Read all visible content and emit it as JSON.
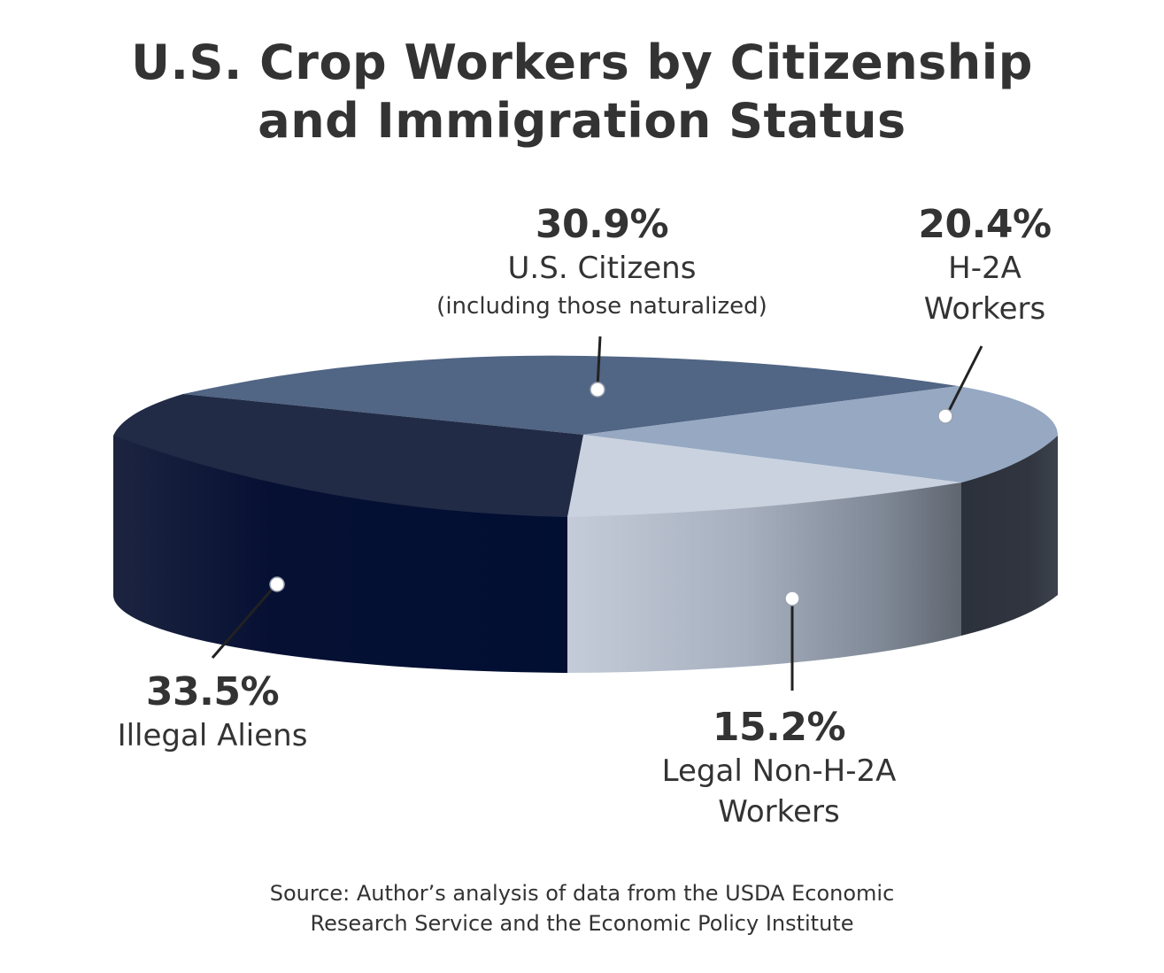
{
  "title": {
    "line1": "U.S. Crop Workers by Citizenship",
    "line2": "and Immigration Status"
  },
  "chart_data": {
    "type": "pie",
    "style": "3d",
    "title": "U.S. Crop Workers by Citizenship and Immigration Status",
    "slices": [
      {
        "label": "U.S. Citizens",
        "sublabel": "(including those naturalized)",
        "value": 30.9,
        "value_label": "30.9%",
        "color": "#516584"
      },
      {
        "label": "H-2A Workers",
        "label_lines": [
          "H-2A",
          "Workers"
        ],
        "value": 20.4,
        "value_label": "20.4%",
        "color": "#96a8c2"
      },
      {
        "label": "Legal Non-H-2A Workers",
        "label_lines": [
          "Legal Non-H-2A",
          "Workers"
        ],
        "value": 15.2,
        "value_label": "15.2%",
        "color": "#c9d2de"
      },
      {
        "label": "Illegal Aliens",
        "value": 33.5,
        "value_label": "33.5%",
        "color": "#212b46"
      }
    ]
  },
  "source": {
    "line1": "Source: Author’s analysis of data from the USDA Economic",
    "line2": "Research Service and the Economic Policy Institute"
  }
}
